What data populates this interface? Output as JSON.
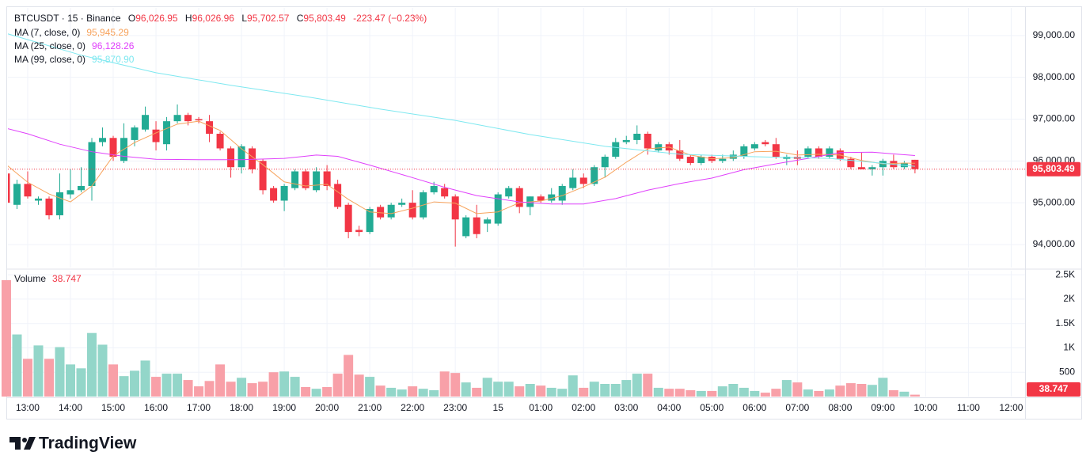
{
  "header": {
    "symbol": "BTCUSDT · 15 · Binance",
    "ohlc": [
      {
        "key": "O",
        "label": "96,026.95"
      },
      {
        "key": "H",
        "label": "96,026.96"
      },
      {
        "key": "L",
        "label": "95,702.57"
      },
      {
        "key": "C",
        "label": "95,803.49"
      }
    ],
    "change": "-223.47 (−0.23%)"
  },
  "chart_data": [
    {
      "type": "candlestick",
      "up_color": "#22ab94",
      "down_color": "#f23645",
      "grid": true,
      "x": [
        0,
        1,
        2,
        3,
        4,
        5,
        6,
        7,
        8,
        9,
        10,
        11,
        12,
        13,
        14,
        15,
        16,
        17,
        18,
        19,
        20,
        21,
        22,
        23,
        24,
        25,
        26,
        27,
        28,
        29,
        30,
        31,
        32,
        33,
        34,
        35,
        36,
        37,
        38,
        39,
        40,
        41,
        42,
        43,
        44,
        45,
        46,
        47,
        48,
        49,
        50,
        51,
        52,
        53,
        54,
        55,
        56,
        57,
        58,
        59,
        60,
        61,
        62,
        63,
        64,
        65,
        66,
        67,
        68,
        69,
        70,
        71,
        72,
        73,
        74,
        75,
        76,
        77,
        78,
        79,
        80,
        81,
        82,
        83,
        84,
        85
      ],
      "open": [
        95700,
        94950,
        95450,
        95050,
        95100,
        94700,
        95200,
        95300,
        95400,
        96450,
        96550,
        96000,
        96500,
        96750,
        96750,
        96400,
        96950,
        97100,
        97000,
        96950,
        96650,
        96300,
        95850,
        96300,
        96000,
        95350,
        95050,
        95350,
        95750,
        95300,
        95750,
        95450,
        94950,
        94350,
        94300,
        94900,
        94650,
        94950,
        95000,
        94650,
        95250,
        95350,
        95150,
        94200,
        94650,
        94500,
        94500,
        95150,
        95350,
        94900,
        95150,
        95050,
        95050,
        95350,
        95600,
        95450,
        95850,
        96100,
        96450,
        96500,
        96650,
        96250,
        96400,
        96250,
        96100,
        95950,
        96100,
        96000,
        96050,
        96100,
        96300,
        96450,
        96400,
        96050,
        96100,
        96100,
        96300,
        96100,
        96250,
        96050,
        95850,
        95800,
        95850,
        96000,
        95850,
        96026.95
      ],
      "high": [
        95750,
        95550,
        95750,
        95150,
        95150,
        95700,
        95800,
        95850,
        96550,
        96800,
        96600,
        96900,
        96850,
        97300,
        96950,
        97050,
        97350,
        97150,
        97050,
        97100,
        96700,
        96350,
        96400,
        96350,
        96050,
        95400,
        95450,
        95800,
        95800,
        95850,
        95900,
        95550,
        95000,
        94450,
        94900,
        94950,
        95000,
        95100,
        95300,
        95300,
        95500,
        95450,
        95200,
        94700,
        94950,
        94650,
        95250,
        95400,
        95400,
        95150,
        95200,
        95350,
        95450,
        95800,
        95700,
        95900,
        96150,
        96550,
        96600,
        96850,
        96700,
        96450,
        96450,
        96500,
        96150,
        96150,
        96150,
        96150,
        96250,
        96400,
        96450,
        96500,
        96550,
        96150,
        96250,
        96350,
        96350,
        96350,
        96300,
        96100,
        96200,
        95900,
        96050,
        96150,
        96000,
        96026.96
      ],
      "low": [
        94950,
        94850,
        95100,
        94950,
        94600,
        94600,
        95100,
        95250,
        95050,
        96350,
        96000,
        95950,
        96350,
        96700,
        96250,
        96250,
        96900,
        96850,
        96900,
        96450,
        96250,
        95600,
        95700,
        95700,
        95200,
        95000,
        94800,
        95300,
        95300,
        95250,
        95300,
        94850,
        94150,
        94200,
        94250,
        94600,
        94600,
        94900,
        94600,
        94600,
        95200,
        95100,
        93950,
        94150,
        94150,
        94300,
        94450,
        95100,
        94750,
        94700,
        95000,
        95000,
        94950,
        95300,
        95350,
        95400,
        95600,
        96050,
        96400,
        96400,
        96150,
        96200,
        96150,
        96000,
        95900,
        95900,
        95950,
        95950,
        96000,
        96050,
        96250,
        96350,
        96050,
        95900,
        95900,
        96050,
        96050,
        96050,
        96000,
        95800,
        95800,
        95650,
        95650,
        95800,
        95800,
        95702.57
      ],
      "close": [
        95000,
        95450,
        95150,
        95100,
        94700,
        95250,
        95300,
        95400,
        96450,
        96550,
        96100,
        96550,
        96800,
        97100,
        96450,
        96950,
        97100,
        96950,
        96970,
        96650,
        96300,
        95850,
        96350,
        95800,
        95300,
        95050,
        95400,
        95750,
        95350,
        95750,
        95400,
        94900,
        94300,
        94300,
        94850,
        94650,
        94950,
        95000,
        94650,
        95250,
        95400,
        95150,
        94600,
        94650,
        94250,
        94600,
        95200,
        95350,
        94900,
        95150,
        95050,
        95200,
        95400,
        95600,
        95450,
        95850,
        96100,
        96450,
        96500,
        96650,
        96300,
        96400,
        96250,
        96050,
        95950,
        96100,
        96000,
        96050,
        96150,
        96350,
        96400,
        96400,
        96100,
        96100,
        96050,
        96300,
        96100,
        96300,
        96050,
        95850,
        95800,
        95850,
        96000,
        95850,
        95950,
        95803.49
      ],
      "xlim": [
        0.15,
        95.3
      ],
      "xticks": [
        {
          "value": 2,
          "label": "13:00"
        },
        {
          "value": 6,
          "label": "14:00"
        },
        {
          "value": 10,
          "label": "15:00"
        },
        {
          "value": 14,
          "label": "16:00"
        },
        {
          "value": 18,
          "label": "17:00"
        },
        {
          "value": 22,
          "label": "18:00"
        },
        {
          "value": 26,
          "label": "19:00"
        },
        {
          "value": 30,
          "label": "20:00"
        },
        {
          "value": 34,
          "label": "21:00"
        },
        {
          "value": 38,
          "label": "22:00"
        },
        {
          "value": 42,
          "label": "23:00"
        },
        {
          "value": 46,
          "label": "15"
        },
        {
          "value": 50,
          "label": "01:00"
        },
        {
          "value": 54,
          "label": "02:00"
        },
        {
          "value": 58,
          "label": "03:00"
        },
        {
          "value": 62,
          "label": "04:00"
        },
        {
          "value": 66,
          "label": "05:00"
        },
        {
          "value": 70,
          "label": "06:00"
        },
        {
          "value": 74,
          "label": "07:00"
        },
        {
          "value": 78,
          "label": "08:00"
        },
        {
          "value": 82,
          "label": "09:00"
        },
        {
          "value": 86,
          "label": "10:00"
        },
        {
          "value": 90,
          "label": "11:00"
        },
        {
          "value": 94,
          "label": "12:00"
        }
      ],
      "ylim": [
        93450,
        99660
      ],
      "yticks": [
        {
          "value": 94000,
          "label": "94,000.00"
        },
        {
          "value": 95000,
          "label": "95,000.00"
        },
        {
          "value": 96000,
          "label": "96,000.00"
        },
        {
          "value": 97000,
          "label": "97,000.00"
        },
        {
          "value": 98000,
          "label": "98,000.00"
        },
        {
          "value": 99000,
          "label": "99,000.00"
        }
      ],
      "ma": [
        {
          "name": "MA (7, close, 0)",
          "color": "#f7a35c",
          "value_label": "95,945.29",
          "x": [
            0,
            2,
            4,
            6,
            8,
            10,
            12,
            14,
            16,
            18,
            20,
            22,
            24,
            26,
            28,
            30,
            32,
            34,
            36,
            38,
            40,
            42,
            44,
            46,
            48,
            50,
            52,
            54,
            56,
            58,
            60,
            62,
            64,
            66,
            68,
            70,
            72,
            74,
            76,
            78,
            80,
            82,
            84,
            85
          ],
          "values": [
            95910,
            95490,
            95210,
            95020,
            95400,
            96120,
            96440,
            96670,
            96880,
            96950,
            96730,
            96290,
            95910,
            95500,
            95400,
            95440,
            95080,
            94780,
            94740,
            94870,
            95020,
            94990,
            94740,
            94780,
            95000,
            95040,
            95170,
            95380,
            95610,
            95970,
            96290,
            96330,
            96140,
            96050,
            96080,
            96220,
            96230,
            96140,
            96160,
            96140,
            96010,
            95930,
            95950,
            95945.29
          ]
        },
        {
          "name": "MA (25, close, 0)",
          "color": "#e040fb",
          "value_label": "96,128.26",
          "x": [
            0,
            2,
            5,
            8,
            11,
            14,
            18,
            22,
            26,
            29,
            31,
            34,
            38,
            41,
            44,
            48,
            51,
            54,
            57,
            60,
            63,
            66,
            69,
            72,
            75,
            78,
            81,
            85
          ],
          "values": [
            96780,
            96650,
            96400,
            96220,
            96110,
            96040,
            96030,
            96030,
            96060,
            96140,
            96110,
            95900,
            95600,
            95370,
            95170,
            95020,
            94970,
            94970,
            95100,
            95300,
            95460,
            95590,
            95790,
            95930,
            96060,
            96200,
            96210,
            96128.26
          ]
        },
        {
          "name": "MA (99, close, 0)",
          "color": "#7ee8f0",
          "value_label": "95,870.90",
          "x": [
            0,
            7,
            14,
            21,
            28,
            35,
            42,
            49,
            56,
            63,
            70,
            77,
            85
          ],
          "values": [
            99050,
            98530,
            98110,
            97810,
            97540,
            97240,
            96970,
            96630,
            96350,
            96160,
            96100,
            96060,
            95870.9
          ]
        }
      ]
    },
    {
      "type": "bar",
      "title": "Volume",
      "up_color": "#93d6c9",
      "down_color": "#f8a0a8",
      "values": [
        2390,
        1275,
        775,
        1050,
        775,
        1015,
        660,
        580,
        1305,
        1065,
        660,
        420,
        530,
        740,
        405,
        470,
        470,
        340,
        210,
        320,
        660,
        305,
        385,
        275,
        305,
        500,
        515,
        405,
        195,
        160,
        195,
        470,
        855,
        450,
        405,
        225,
        180,
        145,
        210,
        160,
        130,
        515,
        485,
        290,
        180,
        385,
        305,
        305,
        210,
        260,
        225,
        180,
        160,
        435,
        180,
        305,
        260,
        260,
        340,
        470,
        470,
        180,
        160,
        160,
        130,
        115,
        115,
        210,
        260,
        180,
        115,
        80,
        160,
        340,
        290,
        145,
        115,
        145,
        225,
        275,
        260,
        240,
        385,
        130,
        100,
        38.747
      ],
      "ylim": [
        0,
        2600
      ],
      "yticks": [
        500,
        {
          "value": 1000,
          "label": "1K"
        },
        {
          "value": 1500,
          "label": "1.5K"
        },
        {
          "value": 2000,
          "label": "2K"
        },
        {
          "value": 2500,
          "label": "2.5K"
        }
      ]
    }
  ],
  "brand": "TradingView"
}
